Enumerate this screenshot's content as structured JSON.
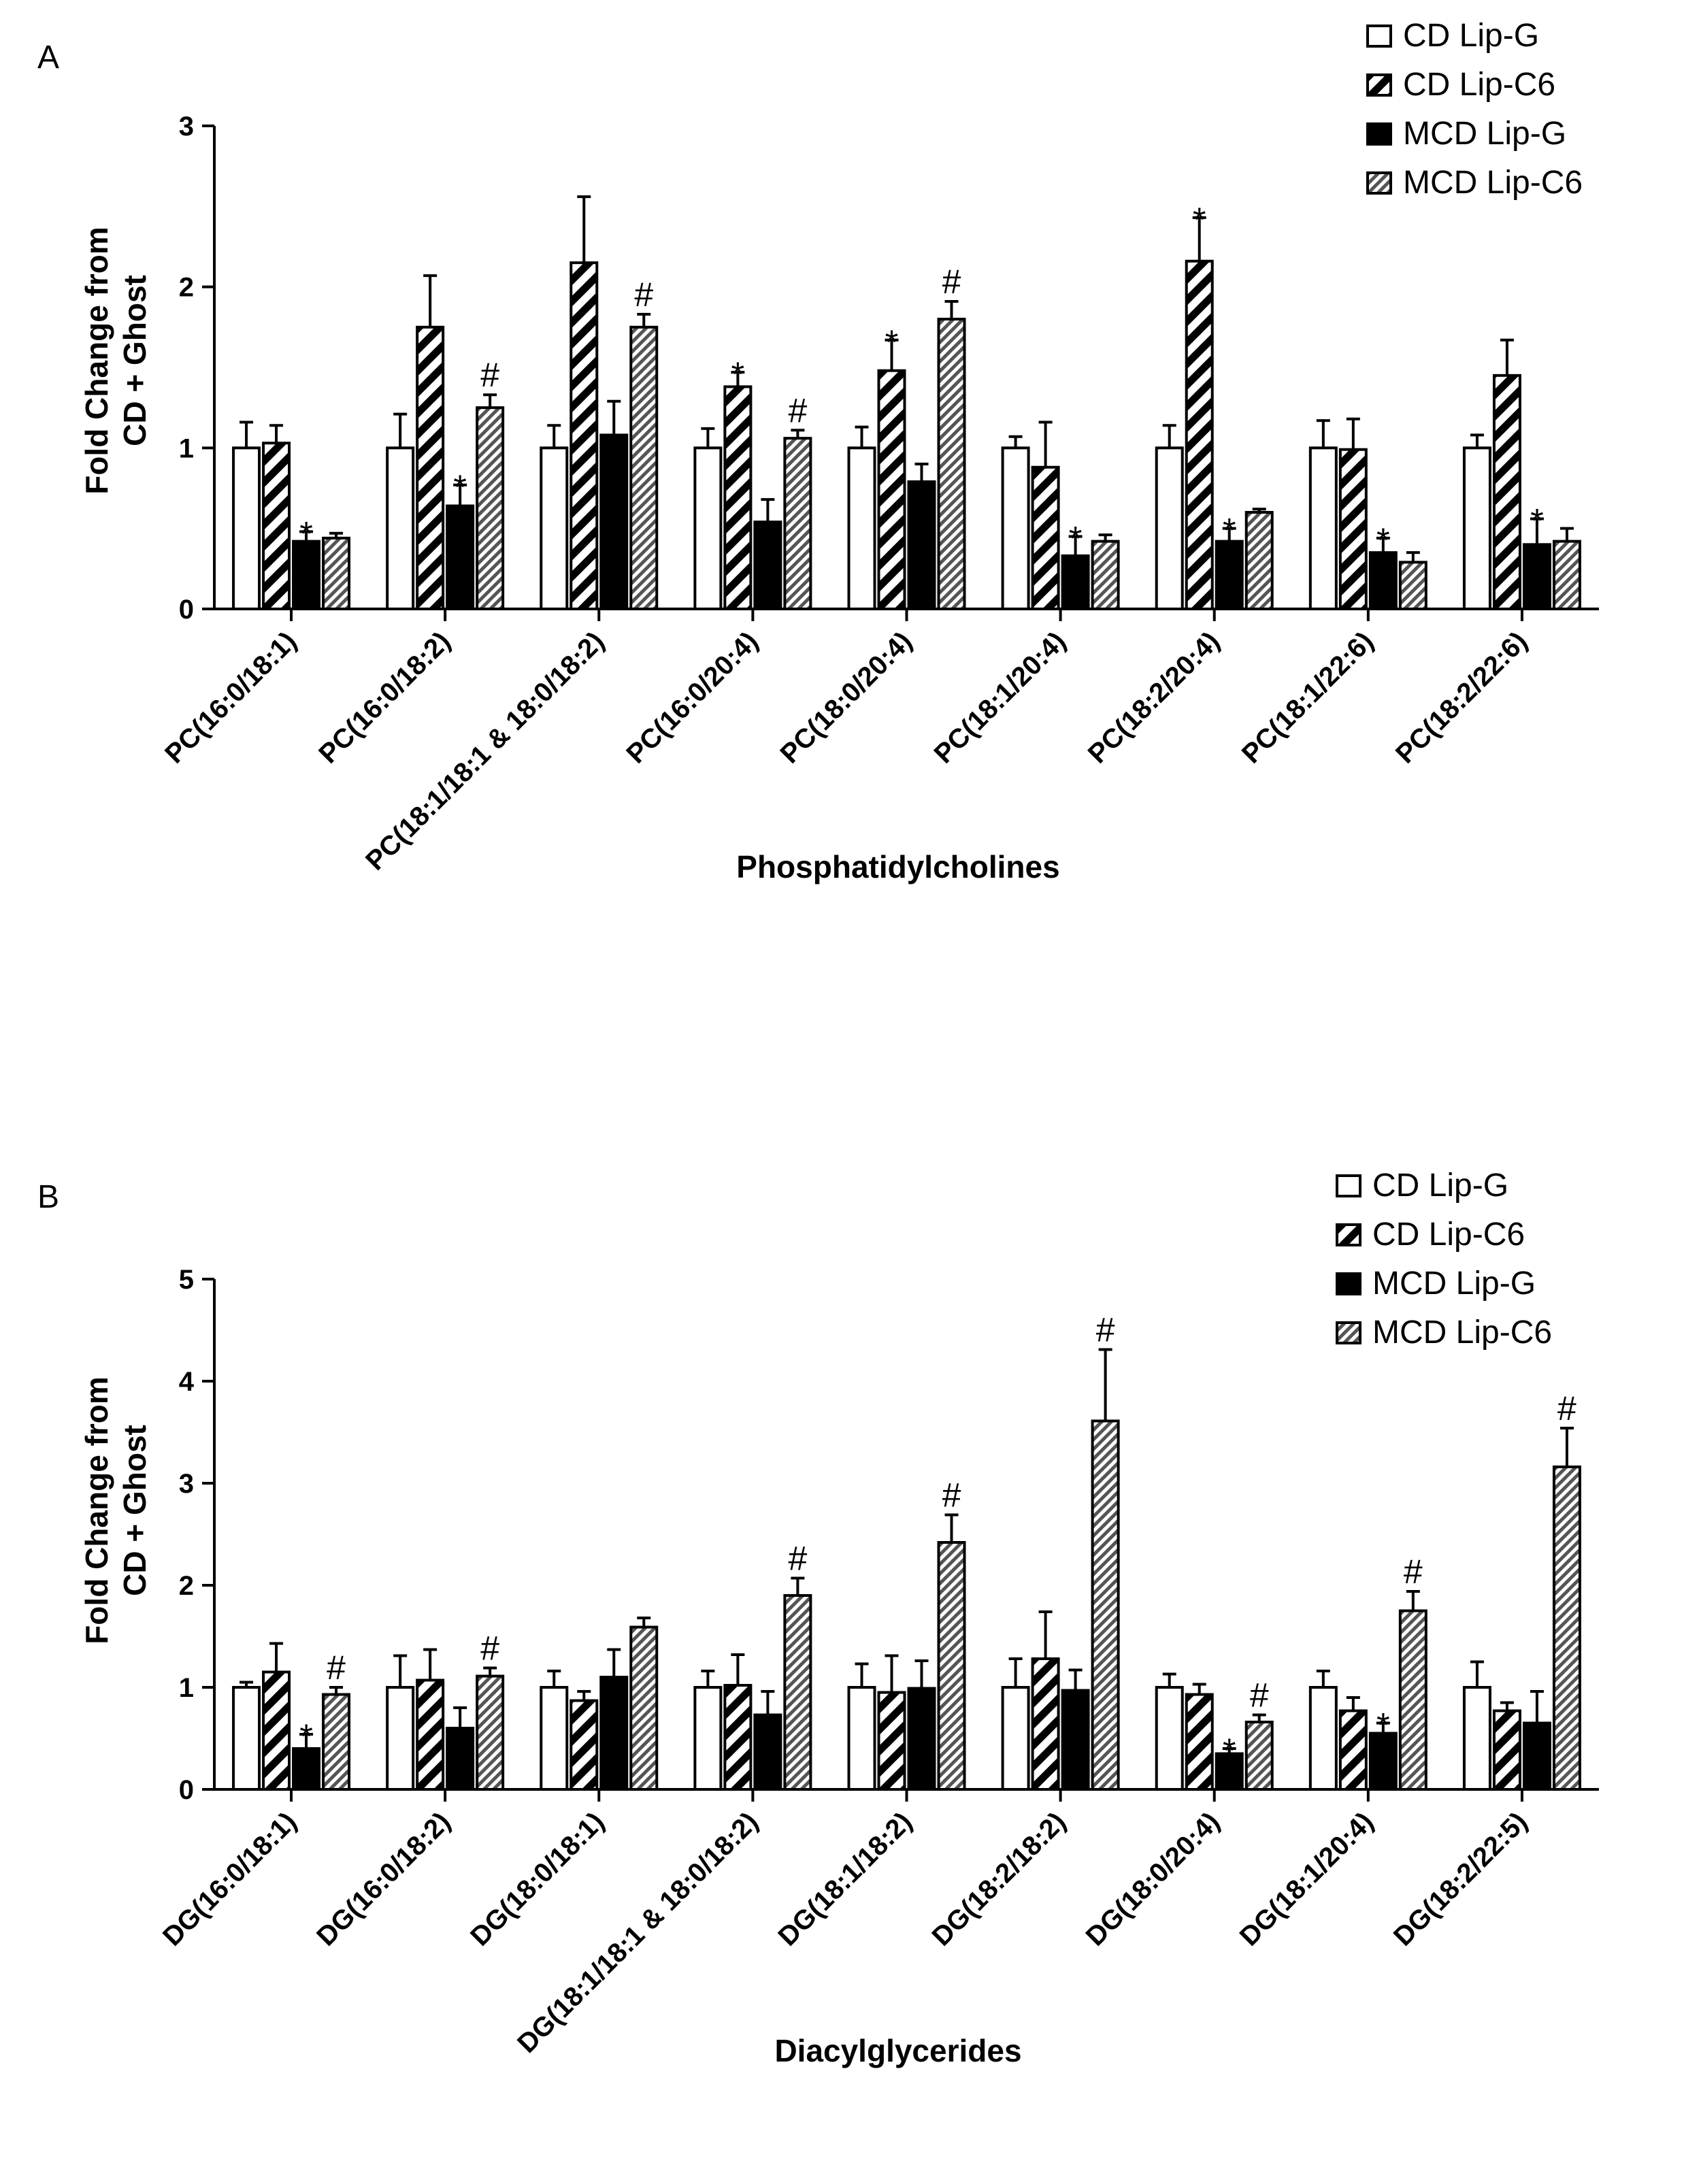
{
  "colors": {
    "ink": "#000000",
    "paper": "#ffffff",
    "hatch_light": "#777777"
  },
  "chart_data": [
    {
      "panel_label": "A",
      "type": "bar",
      "ylabel_lines": [
        "Fold Change from",
        "CD + Ghost"
      ],
      "xlabel": "Phosphatidylcholines",
      "ylim": [
        0,
        3
      ],
      "yticks": [
        "0",
        "1",
        "2",
        "3"
      ],
      "legend": [
        "CD Lip-G",
        "CD Lip-C6",
        "MCD Lip-G",
        "MCD Lip-C6"
      ],
      "categories": [
        "PC(16:0/18:1)",
        "PC(16:0/18:2)",
        "PC(18:1/18:1 & 18:0/18:2)",
        "PC(16:0/20:4)",
        "PC(18:0/20:4)",
        "PC(18:1/20:4)",
        "PC(18:2/20:4)",
        "PC(18:1/22:6)",
        "PC(18:2/22:6)"
      ],
      "series": [
        {
          "name": "CD Lip-G",
          "values": [
            1.0,
            1.0,
            1.0,
            1.0,
            1.0,
            1.0,
            1.0,
            1.0,
            1.0
          ],
          "errors": [
            0.16,
            0.21,
            0.14,
            0.12,
            0.13,
            0.07,
            0.14,
            0.17,
            0.08
          ]
        },
        {
          "name": "CD Lip-C6",
          "values": [
            1.03,
            1.75,
            2.15,
            1.38,
            1.48,
            0.88,
            2.16,
            0.99,
            1.45
          ],
          "errors": [
            0.11,
            0.32,
            0.41,
            0.09,
            0.19,
            0.28,
            0.27,
            0.19,
            0.22
          ]
        },
        {
          "name": "MCD Lip-G",
          "values": [
            0.42,
            0.64,
            1.08,
            0.54,
            0.79,
            0.33,
            0.42,
            0.35,
            0.4
          ],
          "errors": [
            0.06,
            0.13,
            0.21,
            0.14,
            0.11,
            0.12,
            0.08,
            0.09,
            0.16
          ]
        },
        {
          "name": "MCD Lip-C6",
          "values": [
            0.44,
            1.25,
            1.75,
            1.06,
            1.8,
            0.42,
            0.6,
            0.29,
            0.42
          ],
          "errors": [
            0.03,
            0.08,
            0.08,
            0.05,
            0.11,
            0.04,
            0.02,
            0.06,
            0.08
          ]
        }
      ],
      "marks": [
        {
          "category": 0,
          "series": 2,
          "symbol": "*"
        },
        {
          "category": 1,
          "series": 2,
          "symbol": "*"
        },
        {
          "category": 1,
          "series": 3,
          "symbol": "#"
        },
        {
          "category": 2,
          "series": 3,
          "symbol": "#"
        },
        {
          "category": 3,
          "series": 1,
          "symbol": "*"
        },
        {
          "category": 3,
          "series": 3,
          "symbol": "#"
        },
        {
          "category": 4,
          "series": 1,
          "symbol": "*"
        },
        {
          "category": 4,
          "series": 3,
          "symbol": "#"
        },
        {
          "category": 5,
          "series": 2,
          "symbol": "*"
        },
        {
          "category": 6,
          "series": 1,
          "symbol": "*"
        },
        {
          "category": 6,
          "series": 2,
          "symbol": "*"
        },
        {
          "category": 7,
          "series": 2,
          "symbol": "*"
        },
        {
          "category": 8,
          "series": 2,
          "symbol": "*"
        }
      ]
    },
    {
      "panel_label": "B",
      "type": "bar",
      "ylabel_lines": [
        "Fold Change from",
        "CD + Ghost"
      ],
      "xlabel": "Diacylglycerides",
      "ylim": [
        0,
        5
      ],
      "yticks": [
        "0",
        "1",
        "2",
        "3",
        "4",
        "5"
      ],
      "legend": [
        "CD Lip-G",
        "CD Lip-C6",
        "MCD Lip-G",
        "MCD Lip-C6"
      ],
      "categories": [
        "DG(16:0/18:1)",
        "DG(16:0/18:2)",
        "DG(18:0/18:1)",
        "DG(18:1/18:1 & 18:0/18:2)",
        "DG(18:1/18:2)",
        "DG(18:2/18:2)",
        "DG(18:0/20:4)",
        "DG(18:1/20:4)",
        "DG(18:2/22:5)"
      ],
      "series": [
        {
          "name": "CD Lip-G",
          "values": [
            1.0,
            1.0,
            1.0,
            1.0,
            1.0,
            1.0,
            1.0,
            1.0,
            1.0
          ],
          "errors": [
            0.05,
            0.31,
            0.16,
            0.16,
            0.23,
            0.28,
            0.13,
            0.16,
            0.25
          ]
        },
        {
          "name": "CD Lip-C6",
          "values": [
            1.15,
            1.07,
            0.87,
            1.02,
            0.95,
            1.28,
            0.93,
            0.77,
            0.77
          ],
          "errors": [
            0.28,
            0.3,
            0.09,
            0.3,
            0.36,
            0.46,
            0.1,
            0.13,
            0.08
          ]
        },
        {
          "name": "MCD Lip-G",
          "values": [
            0.4,
            0.6,
            1.1,
            0.73,
            0.99,
            0.97,
            0.35,
            0.55,
            0.65
          ],
          "errors": [
            0.14,
            0.2,
            0.27,
            0.23,
            0.27,
            0.2,
            0.05,
            0.1,
            0.31
          ]
        },
        {
          "name": "MCD Lip-C6",
          "values": [
            0.93,
            1.11,
            1.59,
            1.9,
            2.42,
            3.61,
            0.66,
            1.75,
            3.16
          ],
          "errors": [
            0.07,
            0.08,
            0.09,
            0.17,
            0.27,
            0.7,
            0.07,
            0.19,
            0.38
          ]
        }
      ],
      "marks": [
        {
          "category": 0,
          "series": 2,
          "symbol": "*"
        },
        {
          "category": 0,
          "series": 3,
          "symbol": "#"
        },
        {
          "category": 1,
          "series": 3,
          "symbol": "#"
        },
        {
          "category": 3,
          "series": 3,
          "symbol": "#"
        },
        {
          "category": 4,
          "series": 3,
          "symbol": "#"
        },
        {
          "category": 5,
          "series": 3,
          "symbol": "#"
        },
        {
          "category": 6,
          "series": 2,
          "symbol": "*"
        },
        {
          "category": 6,
          "series": 3,
          "symbol": "#"
        },
        {
          "category": 7,
          "series": 2,
          "symbol": "*"
        },
        {
          "category": 7,
          "series": 3,
          "symbol": "#"
        },
        {
          "category": 8,
          "series": 3,
          "symbol": "#"
        }
      ]
    }
  ]
}
